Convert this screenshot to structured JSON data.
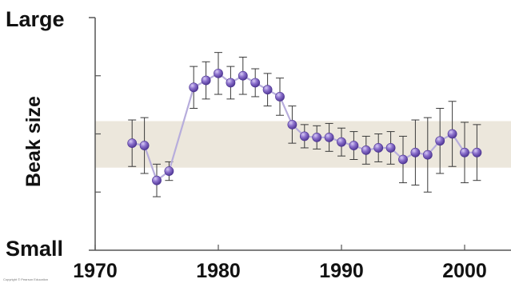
{
  "chart_data": {
    "type": "line",
    "title": "",
    "xlabel": "",
    "ylabel": "Beak size",
    "y_top_label": "Large",
    "y_bottom_label": "Small",
    "x_ticks": [
      "1970",
      "1980",
      "1990",
      "2000"
    ],
    "xlim": [
      1970,
      2004
    ],
    "ylim": [
      0,
      10
    ],
    "y_minor_ticks": [
      2.5,
      5,
      7.5
    ],
    "band": [
      3.55,
      5.55
    ],
    "colors": {
      "band": "#ece7dc",
      "line": "#b7addc",
      "marker": "#7457b3",
      "marker_highlight": "#c9b8ee",
      "error_bar": "#3a3a3a",
      "axis": "#555555"
    },
    "series": [
      {
        "x": [
          1973,
          1974,
          1975,
          1976,
          1978,
          1979,
          1980,
          1981,
          1982,
          1983,
          1984,
          1985,
          1986,
          1987,
          1988,
          1989,
          1990,
          1991,
          1992,
          1993,
          1994,
          1995,
          1996,
          1997,
          1998,
          1999,
          2000,
          2001
        ],
        "y": [
          4.6,
          4.5,
          3.0,
          3.4,
          7.0,
          7.3,
          7.6,
          7.2,
          7.5,
          7.2,
          6.9,
          6.6,
          5.4,
          4.9,
          4.85,
          4.85,
          4.65,
          4.5,
          4.3,
          4.4,
          4.4,
          3.9,
          4.2,
          4.1,
          4.7,
          5.0,
          4.2,
          4.2
        ],
        "err": [
          1.0,
          1.2,
          0.7,
          0.4,
          0.9,
          0.8,
          0.9,
          0.7,
          0.8,
          0.6,
          0.7,
          0.8,
          0.8,
          0.5,
          0.5,
          0.6,
          0.6,
          0.6,
          0.6,
          0.6,
          0.7,
          1.0,
          1.4,
          1.6,
          1.4,
          1.4,
          1.3,
          1.2
        ]
      }
    ]
  },
  "credit_text": "Copyright © Pearson Education"
}
